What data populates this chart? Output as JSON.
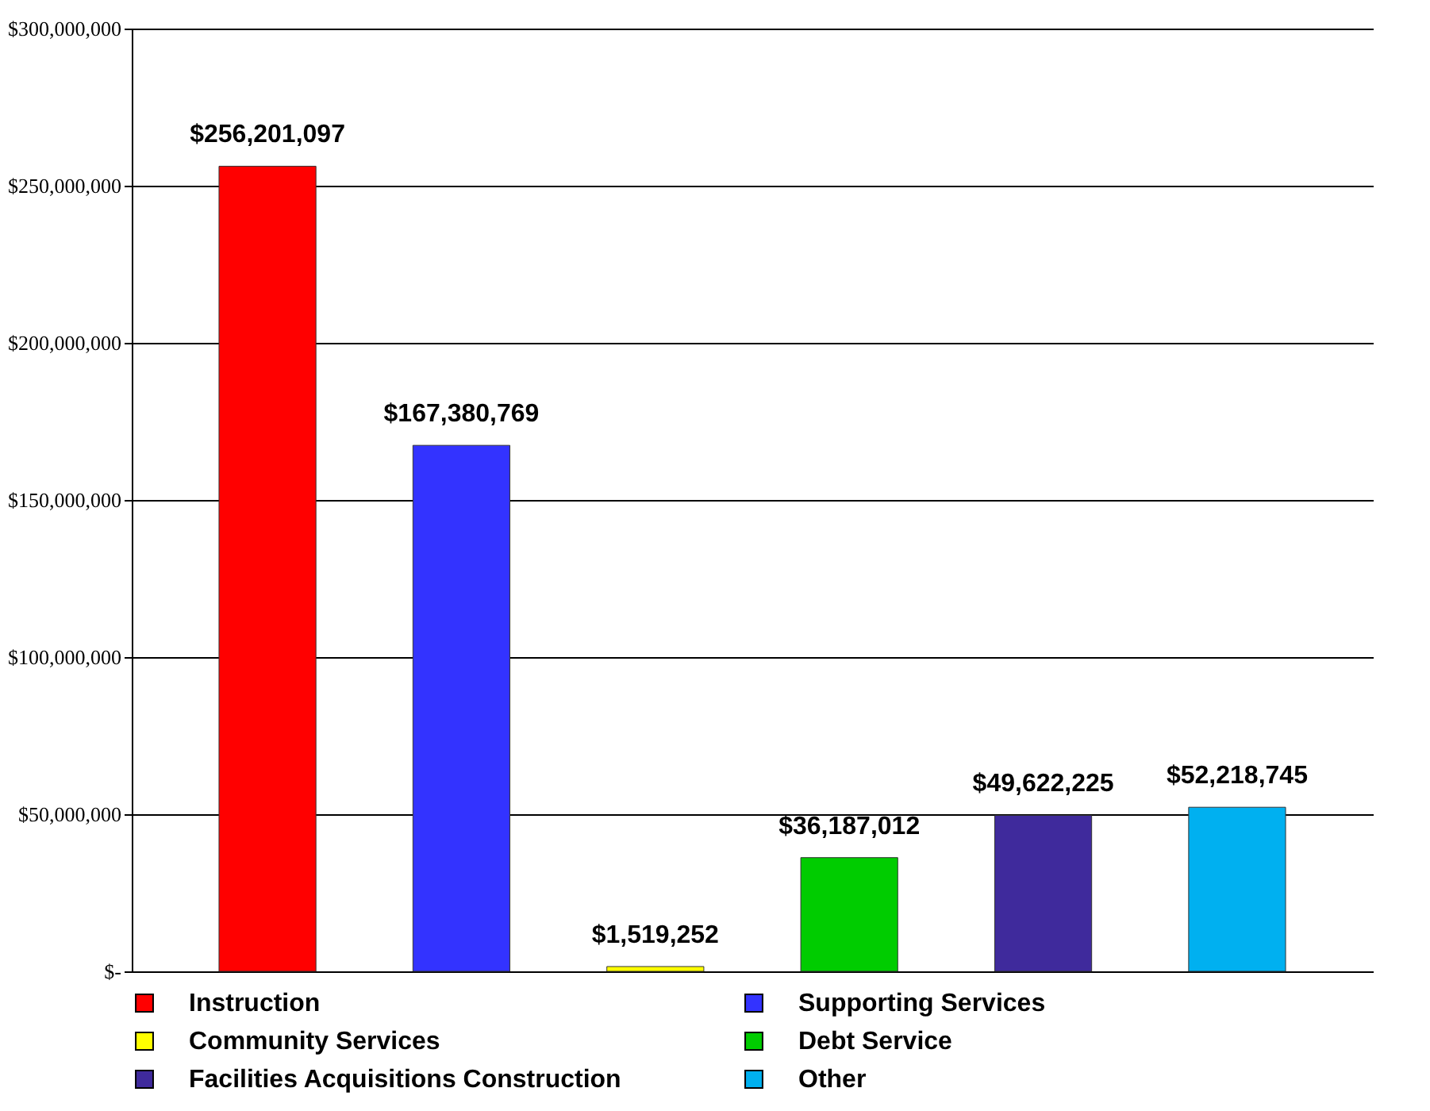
{
  "chart_data": {
    "type": "bar",
    "categories": [
      null,
      null,
      null,
      null,
      null,
      null
    ],
    "series": [
      {
        "name": "Instruction",
        "color": "#ff0000",
        "values": [
          256201097,
          null,
          null,
          null,
          null,
          null
        ],
        "value_labels": [
          "$256,201,097",
          null,
          null,
          null,
          null,
          null
        ]
      },
      {
        "name": "Supporting Services",
        "color": "#3333ff",
        "values": [
          null,
          167380769,
          null,
          null,
          null,
          null
        ],
        "value_labels": [
          null,
          "$167,380,769",
          null,
          null,
          null,
          null
        ]
      },
      {
        "name": "Community Services",
        "color": "#ffff00",
        "values": [
          null,
          null,
          1519252,
          null,
          null,
          null
        ],
        "value_labels": [
          null,
          null,
          "$1,519,252",
          null,
          null,
          null
        ]
      },
      {
        "name": "Debt Service",
        "color": "#00cc00",
        "values": [
          null,
          null,
          null,
          36187012,
          null,
          null
        ],
        "value_labels": [
          null,
          null,
          null,
          "$36,187,012",
          null,
          null
        ]
      },
      {
        "name": "Facilities Acquisitions  Construction",
        "color": "#3f2a9c",
        "values": [
          null,
          null,
          null,
          null,
          49622225,
          null
        ],
        "value_labels": [
          null,
          null,
          null,
          null,
          "$49,622,225",
          null
        ]
      },
      {
        "name": "Other",
        "color": "#00b0f0",
        "values": [
          null,
          null,
          null,
          null,
          null,
          52218745
        ],
        "value_labels": [
          null,
          null,
          null,
          null,
          null,
          "$52,218,745"
        ]
      }
    ],
    "ylim": [
      0,
      300000000
    ],
    "yticks": [
      {
        "value": 0,
        "label": "$-"
      },
      {
        "value": 50000000,
        "label": "$50,000,000"
      },
      {
        "value": 100000000,
        "label": "$100,000,000"
      },
      {
        "value": 150000000,
        "label": "$150,000,000"
      },
      {
        "value": 200000000,
        "label": "$200,000,000"
      },
      {
        "value": 250000000,
        "label": "$250,000,000"
      },
      {
        "value": 300000000,
        "label": "$300,000,000"
      }
    ],
    "grid": "y",
    "legend": "bottom",
    "tick_labels": "y"
  }
}
